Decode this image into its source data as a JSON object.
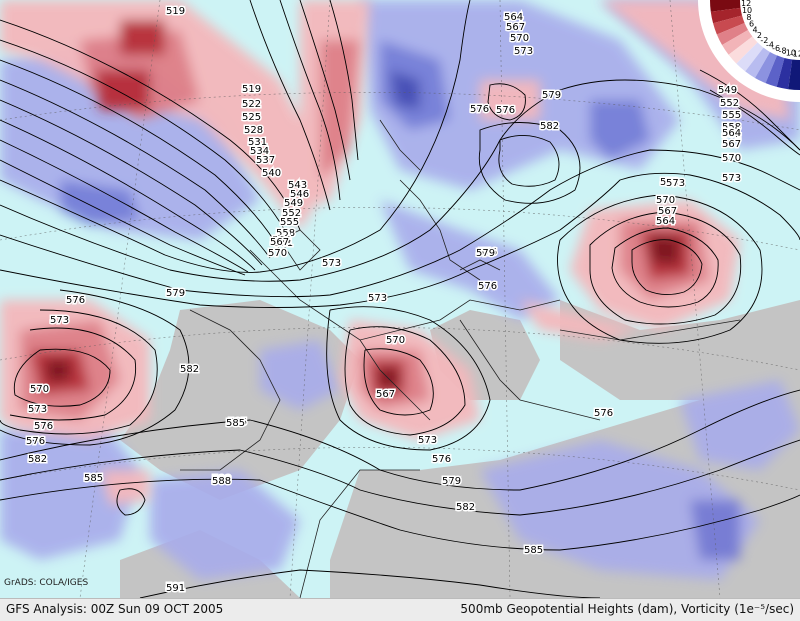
{
  "footer": {
    "left": "GFS Analysis: 00Z Sun 09 OCT 2005",
    "right": "500mb Geopotential Heights (dam), Vorticity (1e⁻⁵/sec)"
  },
  "credit": "GrADS: COLA/IGES",
  "colorbar": {
    "labels": [
      "12",
      "10",
      "8",
      "6",
      "4",
      "2",
      "-2",
      "-4",
      "-6",
      "-8",
      "-10",
      "-12"
    ],
    "colors": [
      "#7a0a12",
      "#a5242c",
      "#c84a50",
      "#e08088",
      "#f2b4b8",
      "#fbdcdd",
      "#dcdcf8",
      "#b8bcf0",
      "#8c92e0",
      "#5c62c8",
      "#2c30a0",
      "#101878"
    ]
  },
  "height_labels": [
    "519",
    "519",
    "522",
    "525",
    "528",
    "531",
    "534",
    "537",
    "540",
    "543",
    "546",
    "549",
    "552",
    "555",
    "558",
    "561",
    "564",
    "567",
    "570",
    "573",
    "576",
    "579",
    "582",
    "585",
    "588",
    "591",
    "564",
    "567",
    "570",
    "573",
    "576",
    "582",
    "579",
    "576",
    "573",
    "570",
    "567",
    "564",
    "579",
    "585",
    "588",
    "582",
    "579",
    "576",
    "573",
    "570",
    "567",
    "573",
    "576",
    "576",
    "573",
    "570",
    "573",
    "576",
    "582",
    "585",
    "585",
    "588",
    "591",
    "576",
    "573",
    "549",
    "552",
    "555",
    "558",
    "561",
    "564",
    "567",
    "570",
    "573",
    "576"
  ]
}
